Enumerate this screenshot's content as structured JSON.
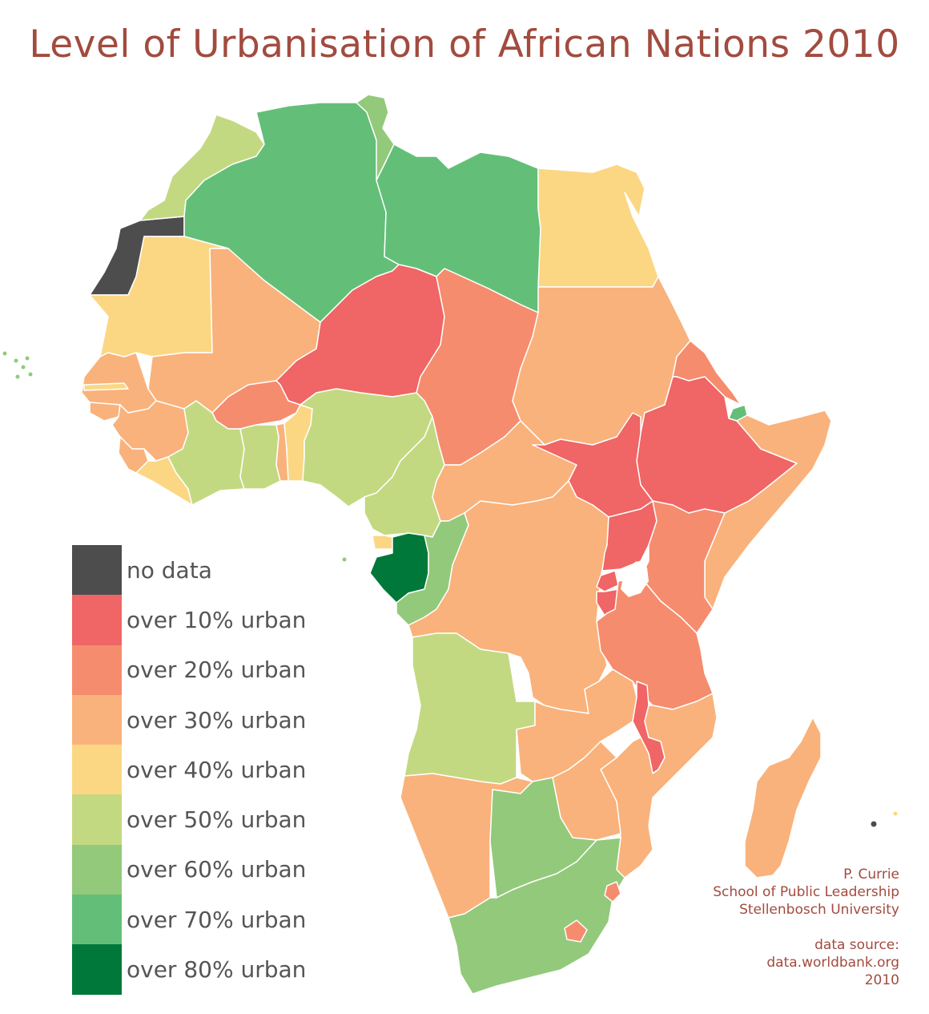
{
  "title": "Level of Urbanisation of African Nations 2010",
  "legend": [
    {
      "label": "no data",
      "color": "#4d4d4d"
    },
    {
      "label": "over 10% urban",
      "color": "#f06565"
    },
    {
      "label": "over 20% urban",
      "color": "#f58c6e"
    },
    {
      "label": "over 30% urban",
      "color": "#f9b27b"
    },
    {
      "label": "over 40% urban",
      "color": "#fbd784"
    },
    {
      "label": "over 50% urban",
      "color": "#c3d981"
    },
    {
      "label": "over 60% urban",
      "color": "#93c97b"
    },
    {
      "label": "over 70% urban",
      "color": "#63bf78"
    },
    {
      "label": "over 80% urban",
      "color": "#00783a"
    }
  ],
  "credits": {
    "author": "P. Currie",
    "org": "School of Public Leadership",
    "university": "Stellenbosch University",
    "source_label": "data source:",
    "source_url": "data.worldbank.org",
    "year": "2010"
  },
  "map": {
    "countries": [
      {
        "id": "western-sahara",
        "cls": 0
      },
      {
        "id": "morocco",
        "cls": 5
      },
      {
        "id": "algeria",
        "cls": 7
      },
      {
        "id": "tunisia",
        "cls": 6
      },
      {
        "id": "libya",
        "cls": 7
      },
      {
        "id": "egypt",
        "cls": 4
      },
      {
        "id": "mauritania",
        "cls": 4
      },
      {
        "id": "mali",
        "cls": 3
      },
      {
        "id": "niger",
        "cls": 1
      },
      {
        "id": "chad",
        "cls": 2
      },
      {
        "id": "sudan",
        "cls": 3
      },
      {
        "id": "eritrea",
        "cls": 2
      },
      {
        "id": "djibouti",
        "cls": 7
      },
      {
        "id": "ethiopia",
        "cls": 1
      },
      {
        "id": "somalia",
        "cls": 3
      },
      {
        "id": "senegal",
        "cls": 3
      },
      {
        "id": "gambia",
        "cls": 4
      },
      {
        "id": "guinea-bissau",
        "cls": 3
      },
      {
        "id": "guinea",
        "cls": 3
      },
      {
        "id": "sierra-leone",
        "cls": 3
      },
      {
        "id": "liberia",
        "cls": 4
      },
      {
        "id": "burkina-faso",
        "cls": 2
      },
      {
        "id": "cote-divoire",
        "cls": 5
      },
      {
        "id": "ghana",
        "cls": 5
      },
      {
        "id": "togo",
        "cls": 3
      },
      {
        "id": "benin",
        "cls": 4
      },
      {
        "id": "nigeria",
        "cls": 5
      },
      {
        "id": "cameroon",
        "cls": 5
      },
      {
        "id": "central-african-republic",
        "cls": 3
      },
      {
        "id": "south-sudan",
        "cls": 1
      },
      {
        "id": "equatorial-guinea",
        "cls": 4
      },
      {
        "id": "gabon",
        "cls": 8
      },
      {
        "id": "republic-of-congo",
        "cls": 6
      },
      {
        "id": "dr-congo",
        "cls": 3
      },
      {
        "id": "uganda",
        "cls": 1
      },
      {
        "id": "kenya",
        "cls": 2
      },
      {
        "id": "rwanda",
        "cls": 1
      },
      {
        "id": "burundi",
        "cls": 1
      },
      {
        "id": "tanzania",
        "cls": 2
      },
      {
        "id": "angola",
        "cls": 5
      },
      {
        "id": "zambia",
        "cls": 3
      },
      {
        "id": "malawi",
        "cls": 1
      },
      {
        "id": "mozambique",
        "cls": 3
      },
      {
        "id": "zimbabwe",
        "cls": 3
      },
      {
        "id": "namibia",
        "cls": 3
      },
      {
        "id": "botswana",
        "cls": 6
      },
      {
        "id": "south-africa",
        "cls": 6
      },
      {
        "id": "lesotho",
        "cls": 2
      },
      {
        "id": "swaziland",
        "cls": 2
      },
      {
        "id": "madagascar",
        "cls": 3
      },
      {
        "id": "cape-verde",
        "cls": 6
      },
      {
        "id": "sao-tome",
        "cls": 6
      },
      {
        "id": "comoros",
        "cls": 0
      },
      {
        "id": "mauritius",
        "cls": 4
      }
    ]
  }
}
